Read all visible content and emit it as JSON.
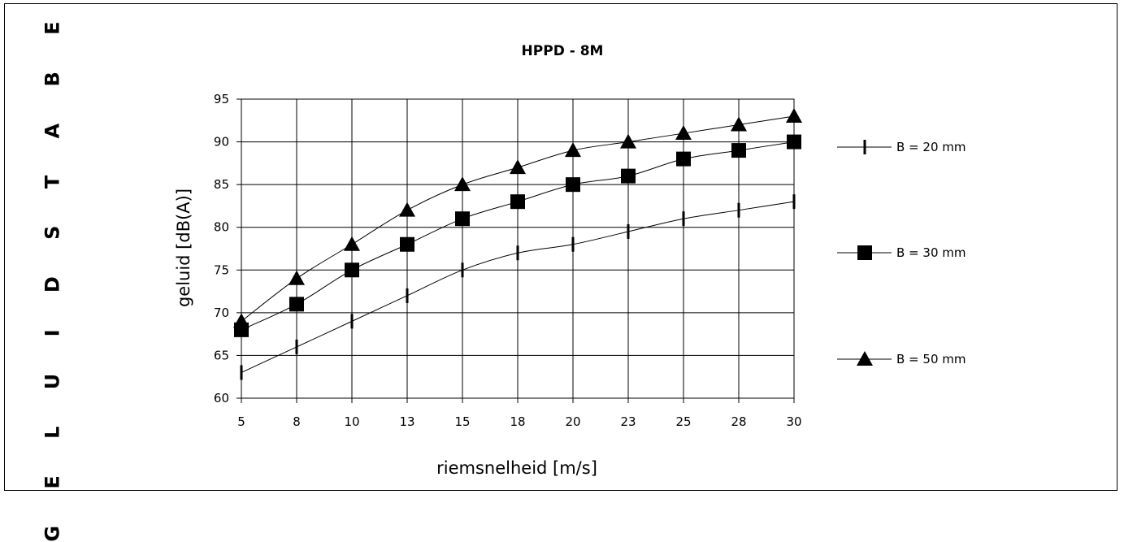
{
  "side_title": "G E L U I D S T A B E L",
  "chart_data": {
    "type": "line",
    "title": "HPPD - 8M",
    "xlabel": "riemsnelheid [m/s]",
    "ylabel": "geluid [dB(A)]",
    "categories": [
      "5",
      "8",
      "10",
      "13",
      "15",
      "18",
      "20",
      "23",
      "25",
      "28",
      "30"
    ],
    "ylim": [
      60,
      95
    ],
    "yticks": [
      "60",
      "65",
      "70",
      "75",
      "80",
      "85",
      "90",
      "95"
    ],
    "grid": true,
    "legend_position": "right",
    "series": [
      {
        "name": "B = 20 mm",
        "marker": "dash",
        "values": [
          63,
          66,
          69,
          72,
          75,
          77,
          78,
          79.5,
          81,
          82,
          83
        ]
      },
      {
        "name": "B = 30 mm",
        "marker": "square",
        "values": [
          68,
          71,
          75,
          78,
          81,
          83,
          85,
          86,
          88,
          89,
          90
        ]
      },
      {
        "name": "B = 50 mm",
        "marker": "triangle",
        "values": [
          69,
          74,
          78,
          82,
          85,
          87,
          89,
          90,
          91,
          92,
          93
        ]
      }
    ]
  }
}
